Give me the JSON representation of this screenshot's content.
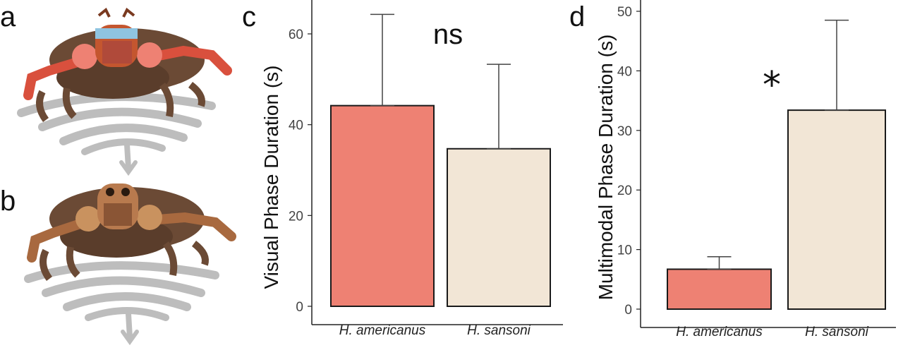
{
  "panels": {
    "a": "a",
    "b": "b",
    "c": "c",
    "d": "d"
  },
  "colors": {
    "americanus": "#ee8173",
    "sansoni": "#f2e6d6",
    "spider_body": "#6b4a35",
    "spider_face_b": "#b87a4e",
    "spider_legs_a": "#e25a45",
    "vibration_arrow": "#bdbdbd"
  },
  "illustrations": {
    "spider_a": "spider-illustration-with-red-legs-and-blue-band",
    "spider_b": "spider-illustration-with-brown-legs"
  },
  "chart_data": [
    {
      "panel": "c",
      "type": "bar",
      "categories": [
        "H. americanus",
        "H. sansoni"
      ],
      "values": [
        44.2,
        34.7
      ],
      "error_upper": [
        64.3,
        53.3
      ],
      "ylabel": "Visual Phase Duration (s)",
      "ylim": [
        0,
        66
      ],
      "yticks": [
        0,
        20,
        40,
        60
      ],
      "annotation": "ns",
      "grid": false
    },
    {
      "panel": "d",
      "type": "bar",
      "categories": [
        "H. americanus",
        "H. sansoni"
      ],
      "values": [
        6.7,
        33.4
      ],
      "error_upper": [
        8.8,
        48.5
      ],
      "ylabel": "Multimodal Phase Duration (s)",
      "ylim": [
        0,
        51
      ],
      "yticks": [
        0,
        10,
        20,
        30,
        40,
        50
      ],
      "annotation": "*",
      "grid": false
    }
  ]
}
